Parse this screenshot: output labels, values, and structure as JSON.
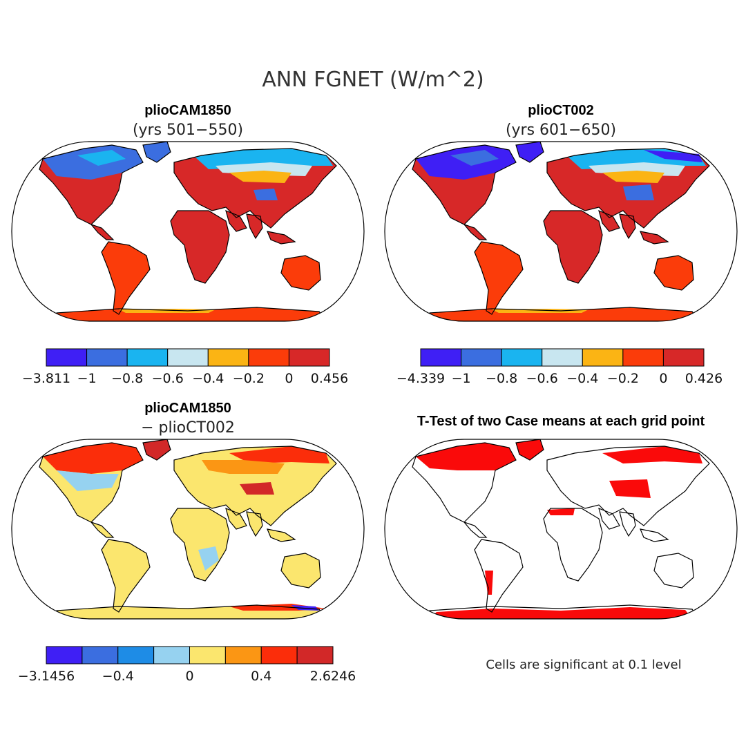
{
  "figure": {
    "title": "ANN FGNET (W/m^2)"
  },
  "panels": [
    {
      "id": "case1",
      "title": "plioCAM1850",
      "subtitle": "(yrs 501-550)",
      "colorbar": {
        "colors": [
          "#3f1ff5",
          "#3b6ee0",
          "#1ab4f0",
          "#c8e6f0",
          "#fbb414",
          "#fb3c0a",
          "#d72828"
        ],
        "labels": [
          "-3.811",
          "-1",
          "-0.8",
          "-0.6",
          "-0.4",
          "-0.2",
          "0",
          "0.456"
        ]
      }
    },
    {
      "id": "case2",
      "title": "plioCT002",
      "subtitle": "(yrs 601-650)",
      "colorbar": {
        "colors": [
          "#3f1ff5",
          "#3b6ee0",
          "#1ab4f0",
          "#c8e6f0",
          "#fbb414",
          "#fb3c0a",
          "#d72828"
        ],
        "labels": [
          "-4.339",
          "-1",
          "-0.8",
          "-0.6",
          "-0.4",
          "-0.2",
          "0",
          "0.426"
        ]
      }
    },
    {
      "id": "diff",
      "title": "plioCAM1850",
      "subtitle": "- plioCT002",
      "colorbar": {
        "colors": [
          "#3f1ff5",
          "#3b6ee0",
          "#1e8ce6",
          "#96d2f0",
          "#fbe66e",
          "#fb9614",
          "#fb2d0a",
          "#d22828"
        ],
        "labels": [
          "-3.1456",
          "-0.4",
          "0",
          "0.4",
          "2.6246"
        ]
      }
    },
    {
      "id": "ttest",
      "title": "T-Test of two Case means at each grid point",
      "note": "Cells are significant at 0.1 level",
      "colors": {
        "significant": "#fa0a0a"
      }
    }
  ]
}
